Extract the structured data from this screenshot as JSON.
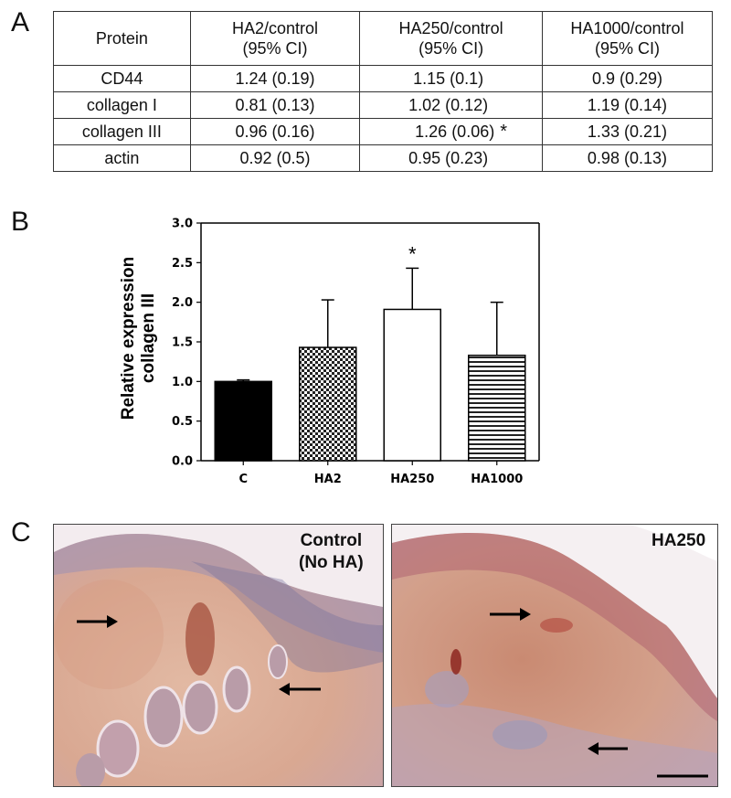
{
  "panel_labels": {
    "a": "A",
    "b": "B",
    "c": "C"
  },
  "table": {
    "headers": [
      "Protein",
      "HA2/control\n(95% CI)",
      "HA250/control\n(95% CI)",
      "HA1000/control\n(95% CI)"
    ],
    "header_lines": [
      [
        "Protein",
        ""
      ],
      [
        "HA2/control",
        "(95% CI)"
      ],
      [
        "HA250/control",
        "(95% CI)"
      ],
      [
        "HA1000/control",
        "(95% CI)"
      ]
    ],
    "rows": [
      {
        "protein": "CD44",
        "ha2": "1.24 (0.19)",
        "ha250": "1.15 (0.1)",
        "ha1000": "0.9 (0.29)",
        "mark": ""
      },
      {
        "protein": "collagen I",
        "ha2": "0.81 (0.13)",
        "ha250": "1.02 (0.12)",
        "ha1000": "1.19 (0.14)",
        "mark": ""
      },
      {
        "protein": "collagen III",
        "ha2": "0.96 (0.16)",
        "ha250": "1.26 (0.06)",
        "ha1000": "1.33 (0.21)",
        "mark": "*"
      },
      {
        "protein": "actin",
        "ha2": "0.92 (0.5)",
        "ha250": "0.95 (0.23)",
        "ha1000": "0.98 (0.13)",
        "mark": ""
      }
    ]
  },
  "chart_data": {
    "type": "bar",
    "categories": [
      "C",
      "HA2",
      "HA250",
      "HA1000"
    ],
    "values": [
      1.0,
      1.43,
      1.91,
      1.33
    ],
    "errors": [
      0.02,
      0.6,
      0.52,
      0.67
    ],
    "fills": [
      "solid-black",
      "checker",
      "white",
      "horizontal-stripes"
    ],
    "annotations": [
      "",
      "",
      "*",
      ""
    ],
    "ylabel_lines": [
      "Relative expression",
      "collagen III"
    ],
    "yticks": [
      "0.0",
      "0.5",
      "1.0",
      "1.5",
      "2.0",
      "2.5",
      "3.0"
    ],
    "ylim": [
      0,
      3.0
    ],
    "xlabel": "",
    "title": "",
    "grid": false
  },
  "micrographs": {
    "left_label_lines": [
      "Control",
      "(No HA)"
    ],
    "right_label": "HA250"
  }
}
